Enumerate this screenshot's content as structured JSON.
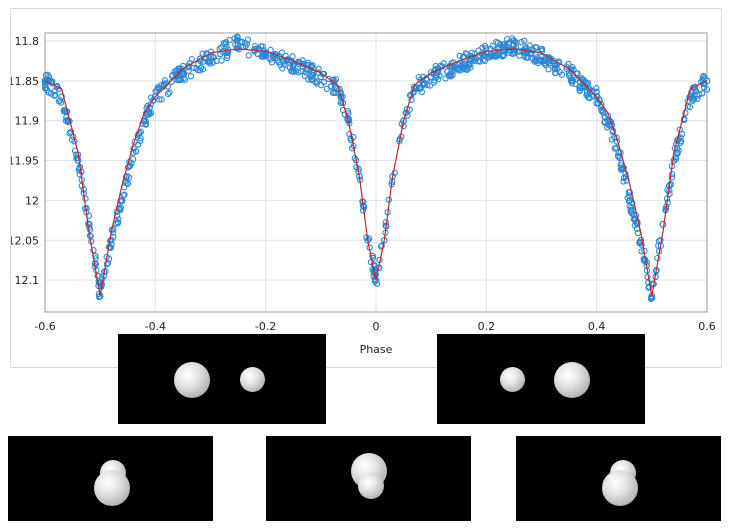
{
  "chart_data": {
    "type": "scatter",
    "title": "",
    "xlabel": "Phase",
    "ylabel": "",
    "xlim": [
      -0.6,
      0.6
    ],
    "ylim": [
      12.14,
      11.79
    ],
    "y_inverted": true,
    "grid": true,
    "x_ticks": [
      "-0.6",
      "-0.4",
      "-0.2",
      "0",
      "0.2",
      "0.4",
      "0.6"
    ],
    "y_ticks": [
      "11.8",
      "11.85",
      "11.9",
      "11.95",
      "12",
      "12.05",
      "12.1"
    ],
    "series": [
      {
        "kind": "observations",
        "marker": "open-circle",
        "color": "#2a86d6",
        "x": [
          -0.6,
          -0.57,
          -0.54,
          -0.52,
          -0.5,
          -0.48,
          -0.46,
          -0.44,
          -0.42,
          -0.4,
          -0.35,
          -0.3,
          -0.25,
          -0.2,
          -0.15,
          -0.1,
          -0.07,
          -0.05,
          -0.03,
          -0.015,
          0,
          0.015,
          0.03,
          0.05,
          0.07,
          0.1,
          0.15,
          0.2,
          0.25,
          0.3,
          0.35,
          0.4,
          0.42,
          0.44,
          0.46,
          0.48,
          0.5,
          0.52,
          0.54,
          0.57,
          0.6
        ],
        "y": [
          11.85,
          11.87,
          11.95,
          12.03,
          12.12,
          12.05,
          12.0,
          11.94,
          11.9,
          11.87,
          11.84,
          11.82,
          11.805,
          11.815,
          11.83,
          11.845,
          11.86,
          11.9,
          11.97,
          12.05,
          12.1,
          12.05,
          11.97,
          11.9,
          11.86,
          11.845,
          11.83,
          11.815,
          11.805,
          11.82,
          11.84,
          11.87,
          11.9,
          11.94,
          12.0,
          12.05,
          12.12,
          12.03,
          11.95,
          11.87,
          11.85
        ]
      },
      {
        "kind": "model",
        "line": "solid",
        "color": "#c0282a",
        "x": [
          -0.6,
          -0.57,
          -0.54,
          -0.52,
          -0.5,
          -0.48,
          -0.46,
          -0.44,
          -0.42,
          -0.4,
          -0.35,
          -0.3,
          -0.25,
          -0.2,
          -0.15,
          -0.1,
          -0.07,
          -0.05,
          -0.03,
          -0.015,
          0,
          0.015,
          0.03,
          0.05,
          0.07,
          0.1,
          0.15,
          0.2,
          0.25,
          0.3,
          0.35,
          0.4,
          0.42,
          0.44,
          0.46,
          0.48,
          0.5,
          0.52,
          0.54,
          0.57,
          0.6
        ],
        "y": [
          11.85,
          11.86,
          11.94,
          12.04,
          12.12,
          12.04,
          11.98,
          11.93,
          11.89,
          11.87,
          11.835,
          11.815,
          11.81,
          11.813,
          11.825,
          11.84,
          11.855,
          11.9,
          11.97,
          12.05,
          12.1,
          12.05,
          11.97,
          11.9,
          11.855,
          11.84,
          11.825,
          11.813,
          11.81,
          11.815,
          11.835,
          11.87,
          11.89,
          11.93,
          11.98,
          12.04,
          12.12,
          12.04,
          11.94,
          11.86,
          11.85
        ]
      }
    ]
  },
  "panels": [
    {
      "name": "orbit-view-1",
      "stars": [
        {
          "kind": "primary"
        },
        {
          "kind": "secondary"
        }
      ]
    },
    {
      "name": "orbit-view-2",
      "stars": [
        {
          "kind": "secondary"
        },
        {
          "kind": "primary"
        }
      ]
    },
    {
      "name": "orbit-view-3",
      "stars": [
        {
          "kind": "secondary-behind"
        },
        {
          "kind": "primary-front"
        }
      ]
    },
    {
      "name": "orbit-view-4",
      "stars": [
        {
          "kind": "primary-behind"
        },
        {
          "kind": "secondary-front"
        }
      ]
    },
    {
      "name": "orbit-view-5",
      "stars": [
        {
          "kind": "secondary-behind"
        },
        {
          "kind": "primary-front"
        }
      ]
    }
  ]
}
